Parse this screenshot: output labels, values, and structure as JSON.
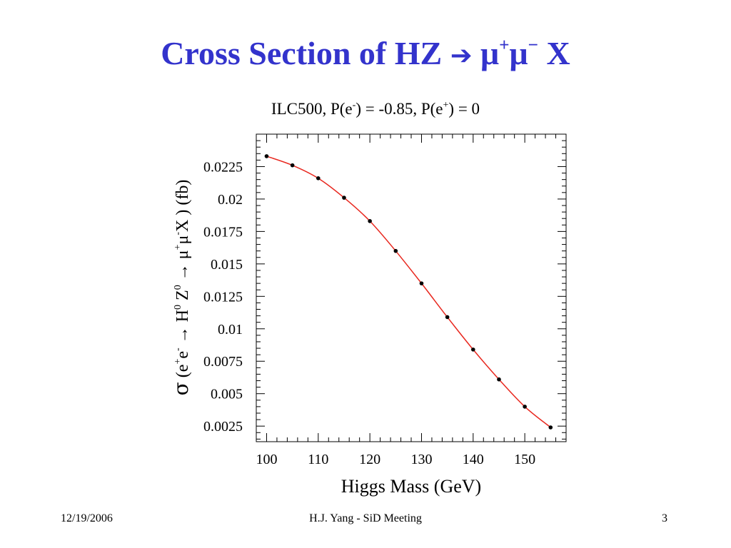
{
  "slide": {
    "title_main": "Cross Section of HZ ",
    "title_arrow": "➔",
    "title_mu1": " μ",
    "title_sup1": "+",
    "title_mu2": "μ",
    "title_sup2": "−",
    "title_tail": " X"
  },
  "footer": {
    "date": "12/19/2006",
    "center": "H.J. Yang - SiD Meeting",
    "page": "3"
  },
  "colors": {
    "title": "#3333cc",
    "curve": "#e8271e",
    "points": "#000000"
  },
  "chart_data": {
    "type": "line",
    "title": {
      "pre": "ILC500, P(e",
      "sup1": "-",
      "mid": ") = -0.85, P(e",
      "sup2": "+",
      "post": ") = 0"
    },
    "xlabel": "Higgs Mass (GeV)",
    "ylabel": {
      "sigma": "σ",
      "p1": " (e",
      "s1": "+",
      "p2": "e",
      "s2": "-",
      "p3": " → H",
      "s3": "0",
      "p4": " Z",
      "s4": "0",
      "p5": " → μ",
      "s5": "+",
      "p6": "μ",
      "s6": "-",
      "p7": "X ) (fb)"
    },
    "xlim": [
      98,
      158
    ],
    "ylim": [
      0.0013,
      0.025
    ],
    "xticks": [
      100,
      110,
      120,
      130,
      140,
      150
    ],
    "yticks": [
      0.0025,
      0.005,
      0.0075,
      0.01,
      0.0125,
      0.015,
      0.0175,
      0.02,
      0.0225
    ],
    "ytick_labels": [
      "0.0025",
      "0.005",
      "0.0075",
      "0.01",
      "0.0125",
      "0.015",
      "0.0175",
      "0.02",
      "0.0225"
    ],
    "grid": false,
    "legend": "none",
    "series": [
      {
        "x": [
          100,
          105,
          110,
          115,
          120,
          125,
          130,
          135,
          140,
          145,
          150,
          155
        ],
        "y": [
          0.0233,
          0.0226,
          0.0216,
          0.0201,
          0.0183,
          0.016,
          0.0135,
          0.0109,
          0.0084,
          0.0061,
          0.004,
          0.0024
        ]
      }
    ]
  }
}
